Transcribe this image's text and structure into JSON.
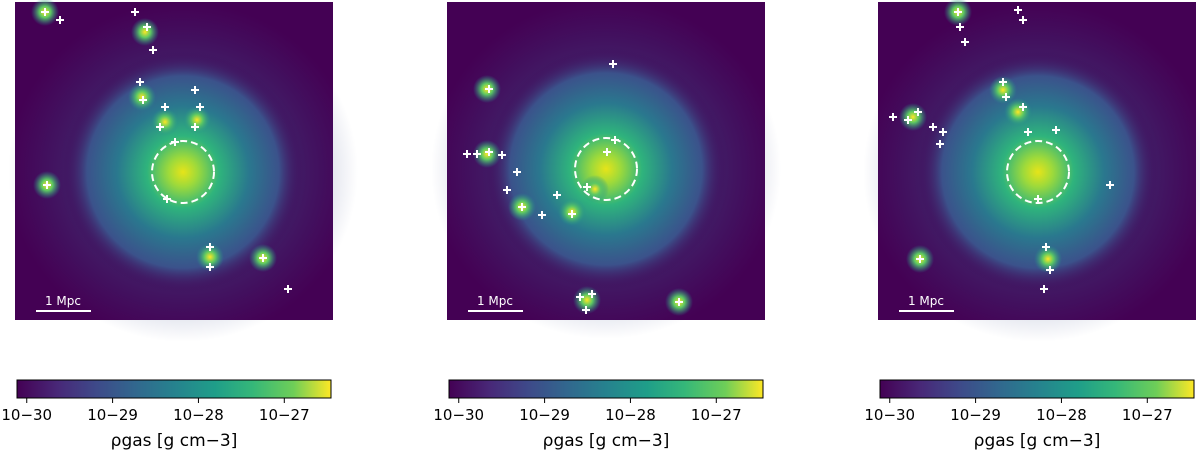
{
  "chart_data": [
    {
      "type": "colormap",
      "colormap": "viridis",
      "scale_bar": "1 Mpc",
      "xlabel": "ρgas [g cm−3]",
      "xscale": "log",
      "xlim": [
        7.7e-31,
        3.5e-27
      ],
      "xticks": [
        {
          "value": 1e-30,
          "label": "10−30"
        },
        {
          "value": 1e-29,
          "label": "10−29"
        },
        {
          "value": 1e-28,
          "label": "10−28"
        },
        {
          "value": 1e-27,
          "label": "10−27"
        }
      ]
    },
    {
      "type": "colormap",
      "colormap": "viridis",
      "scale_bar": "1 Mpc",
      "xlabel": "ρgas [g cm−3]",
      "xscale": "log",
      "xlim": [
        7.7e-31,
        3.5e-27
      ],
      "xticks": [
        {
          "value": 1e-30,
          "label": "10−30"
        },
        {
          "value": 1e-29,
          "label": "10−29"
        },
        {
          "value": 1e-28,
          "label": "10−28"
        },
        {
          "value": 1e-27,
          "label": "10−27"
        }
      ]
    },
    {
      "type": "colormap",
      "colormap": "viridis",
      "scale_bar": "1 Mpc",
      "xlabel": "ρgas [g cm−3]",
      "xscale": "log",
      "xlim": [
        7.7e-31,
        3.5e-27
      ],
      "xticks": [
        {
          "value": 1e-30,
          "label": "10−30"
        },
        {
          "value": 1e-29,
          "label": "10−29"
        },
        {
          "value": 1e-28,
          "label": "10−28"
        },
        {
          "value": 1e-27,
          "label": "10−27"
        }
      ]
    }
  ]
}
